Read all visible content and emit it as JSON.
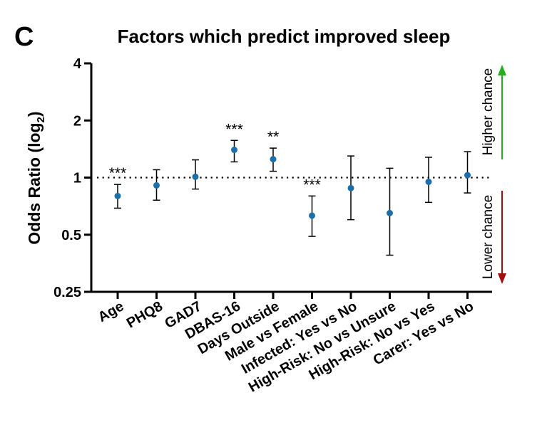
{
  "panel_label": "C",
  "chart_data": {
    "type": "scatter",
    "title": "Factors which predict improved sleep",
    "ylabel": {
      "main": "Odds Ratio (log",
      "sub": "2",
      "close": ")"
    },
    "xlabel": "",
    "y_scale": "log2",
    "ylim": [
      0.25,
      4
    ],
    "y_ticks": [
      0.25,
      0.5,
      1,
      2,
      4
    ],
    "y_tick_labels": [
      "0.25",
      "0.5",
      "1",
      "2",
      "4"
    ],
    "reference_line": 1,
    "grid": false,
    "categories": [
      "Age",
      "PHQ8",
      "GAD7",
      "DBAS-16",
      "Days Outside",
      "Male vs Female",
      "Infected: Yes vs No",
      "High-Risk: No vs Unsure",
      "High-Risk: No vs Yes",
      "Carer: Yes vs No"
    ],
    "odds_ratio": [
      0.8,
      0.91,
      1.01,
      1.4,
      1.25,
      0.63,
      0.88,
      0.65,
      0.95,
      1.03
    ],
    "ci_lower": [
      0.69,
      0.76,
      0.87,
      1.21,
      1.08,
      0.49,
      0.6,
      0.39,
      0.74,
      0.83
    ],
    "ci_upper": [
      0.92,
      1.1,
      1.24,
      1.57,
      1.43,
      0.8,
      1.3,
      1.12,
      1.28,
      1.37
    ],
    "significance": [
      "***",
      "",
      "",
      "***",
      "**",
      "***",
      "",
      "",
      "",
      ""
    ],
    "point_color": "#1c6fa8",
    "annotations": {
      "higher": {
        "label": "Higher chance",
        "color": "#22b022"
      },
      "lower": {
        "label": "Lower chance",
        "color": "#a01010"
      }
    }
  }
}
